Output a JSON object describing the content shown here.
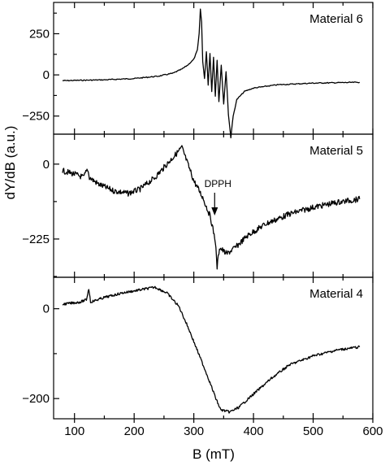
{
  "chart_data": {
    "type": "line",
    "xlabel": "B (mT)",
    "ylabel": "dY/dB (a.u.)",
    "x_ticks": [
      100,
      200,
      300,
      400,
      500,
      600
    ],
    "xlim": [
      65,
      600
    ],
    "panels": [
      {
        "label": "Material 6",
        "ylim": [
          -360,
          440
        ],
        "y_ticks": [
          250,
          0,
          -250
        ],
        "points": [
          [
            80,
            -35
          ],
          [
            150,
            -30
          ],
          [
            200,
            -22
          ],
          [
            240,
            -8
          ],
          [
            265,
            10
          ],
          [
            280,
            35
          ],
          [
            290,
            60
          ],
          [
            300,
            95
          ],
          [
            306,
            150
          ],
          [
            309,
            250
          ],
          [
            311,
            400
          ],
          [
            313,
            320
          ],
          [
            315,
            80
          ],
          [
            318,
            -20
          ],
          [
            321,
            140
          ],
          [
            324,
            -60
          ],
          [
            327,
            130
          ],
          [
            330,
            -100
          ],
          [
            333,
            110
          ],
          [
            336,
            -130
          ],
          [
            339,
            90
          ],
          [
            342,
            -160
          ],
          [
            346,
            60
          ],
          [
            350,
            -180
          ],
          [
            354,
            20
          ],
          [
            358,
            -240
          ],
          [
            362,
            -380
          ],
          [
            366,
            -250
          ],
          [
            372,
            -150
          ],
          [
            385,
            -100
          ],
          [
            400,
            -80
          ],
          [
            440,
            -60
          ],
          [
            500,
            -50
          ],
          [
            578,
            -45
          ]
        ]
      },
      {
        "label": "Material 5",
        "ylim": [
          -340,
          90
        ],
        "y_ticks": [
          0,
          -225
        ],
        "points": [
          [
            80,
            -20
          ],
          [
            100,
            -30
          ],
          [
            115,
            -40
          ],
          [
            122,
            -15
          ],
          [
            125,
            -40
          ],
          [
            140,
            -60
          ],
          [
            165,
            -80
          ],
          [
            190,
            -88
          ],
          [
            210,
            -75
          ],
          [
            235,
            -40
          ],
          [
            255,
            0
          ],
          [
            270,
            30
          ],
          [
            280,
            50
          ],
          [
            290,
            0
          ],
          [
            300,
            -50
          ],
          [
            315,
            -100
          ],
          [
            328,
            -160
          ],
          [
            336,
            -230
          ],
          [
            339,
            -310
          ],
          [
            343,
            -250
          ],
          [
            355,
            -270
          ],
          [
            370,
            -250
          ],
          [
            390,
            -215
          ],
          [
            420,
            -180
          ],
          [
            460,
            -150
          ],
          [
            500,
            -130
          ],
          [
            540,
            -115
          ],
          [
            578,
            -105
          ]
        ]
      },
      {
        "label": "Material 4",
        "ylim": [
          -245,
          70
        ],
        "y_ticks": [
          0,
          -200
        ],
        "points": [
          [
            80,
            10
          ],
          [
            110,
            15
          ],
          [
            120,
            20
          ],
          [
            124,
            45
          ],
          [
            127,
            15
          ],
          [
            150,
            25
          ],
          [
            180,
            35
          ],
          [
            210,
            42
          ],
          [
            235,
            48
          ],
          [
            255,
            35
          ],
          [
            275,
            5
          ],
          [
            290,
            -40
          ],
          [
            305,
            -90
          ],
          [
            320,
            -140
          ],
          [
            330,
            -175
          ],
          [
            337,
            -200
          ],
          [
            345,
            -225
          ],
          [
            360,
            -230
          ],
          [
            375,
            -220
          ],
          [
            400,
            -190
          ],
          [
            430,
            -155
          ],
          [
            460,
            -125
          ],
          [
            500,
            -105
          ],
          [
            540,
            -92
          ],
          [
            578,
            -85
          ]
        ]
      }
    ],
    "annotations": [
      {
        "panel": 1,
        "text": "DPPH",
        "x": 339
      }
    ]
  }
}
